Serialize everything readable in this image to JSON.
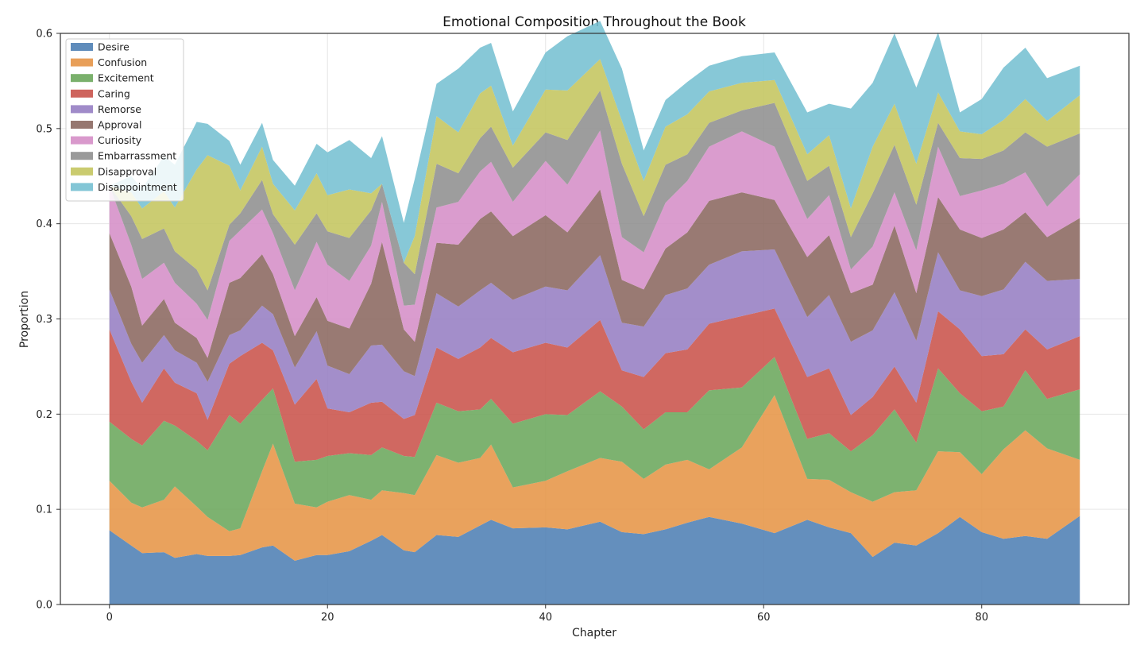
{
  "chart_data": {
    "type": "area",
    "stacked": true,
    "title": "Emotional Composition Throughout the Book",
    "xlabel": "Chapter",
    "ylabel": "Proportion",
    "xlim": [
      -4.5,
      93.5
    ],
    "ylim": [
      0,
      0.6
    ],
    "xticks": [
      0,
      20,
      40,
      60,
      80
    ],
    "yticks": [
      0.0,
      0.1,
      0.2,
      0.3,
      0.4,
      0.5,
      0.6
    ],
    "grid": true,
    "legend_position": "upper-left",
    "x_anchor": [
      0,
      2,
      3,
      5,
      6,
      8,
      9,
      11,
      12,
      14,
      15,
      17,
      19,
      20,
      22,
      24,
      25,
      27,
      28,
      30,
      32,
      34,
      35,
      37,
      40,
      42,
      45,
      47,
      49,
      51,
      53,
      55,
      58,
      61,
      64,
      66,
      68,
      70,
      72,
      74,
      76,
      78,
      80,
      82,
      84,
      86,
      89
    ],
    "series": [
      {
        "name": "Desire",
        "color": "#4e7fb4",
        "values": [
          0.078,
          0.062,
          0.054,
          0.055,
          0.049,
          0.053,
          0.051,
          0.051,
          0.052,
          0.06,
          0.062,
          0.046,
          0.052,
          0.052,
          0.056,
          0.067,
          0.073,
          0.057,
          0.055,
          0.073,
          0.071,
          0.083,
          0.089,
          0.08,
          0.081,
          0.079,
          0.087,
          0.076,
          0.074,
          0.079,
          0.086,
          0.092,
          0.085,
          0.075,
          0.089,
          0.081,
          0.075,
          0.05,
          0.065,
          0.062,
          0.075,
          0.092,
          0.076,
          0.069,
          0.072,
          0.069,
          0.093
        ]
      },
      {
        "name": "Confusion",
        "color": "#e69547",
        "values": [
          0.052,
          0.045,
          0.048,
          0.055,
          0.075,
          0.05,
          0.041,
          0.026,
          0.028,
          0.08,
          0.107,
          0.06,
          0.05,
          0.056,
          0.059,
          0.043,
          0.047,
          0.06,
          0.06,
          0.084,
          0.078,
          0.071,
          0.079,
          0.043,
          0.049,
          0.061,
          0.067,
          0.074,
          0.058,
          0.068,
          0.066,
          0.05,
          0.08,
          0.145,
          0.043,
          0.05,
          0.043,
          0.058,
          0.053,
          0.058,
          0.086,
          0.068,
          0.061,
          0.094,
          0.111,
          0.095,
          0.059
        ]
      },
      {
        "name": "Excitement",
        "color": "#6ba75c",
        "values": [
          0.062,
          0.067,
          0.065,
          0.083,
          0.064,
          0.069,
          0.07,
          0.122,
          0.11,
          0.075,
          0.058,
          0.044,
          0.05,
          0.048,
          0.044,
          0.047,
          0.045,
          0.039,
          0.04,
          0.055,
          0.054,
          0.051,
          0.048,
          0.067,
          0.07,
          0.059,
          0.07,
          0.058,
          0.052,
          0.055,
          0.05,
          0.083,
          0.063,
          0.04,
          0.042,
          0.049,
          0.043,
          0.07,
          0.087,
          0.05,
          0.087,
          0.062,
          0.066,
          0.045,
          0.063,
          0.052,
          0.074
        ]
      },
      {
        "name": "Caring",
        "color": "#c9534b",
        "values": [
          0.097,
          0.06,
          0.045,
          0.055,
          0.045,
          0.05,
          0.032,
          0.054,
          0.071,
          0.06,
          0.04,
          0.06,
          0.085,
          0.05,
          0.043,
          0.055,
          0.048,
          0.039,
          0.044,
          0.058,
          0.055,
          0.065,
          0.064,
          0.075,
          0.075,
          0.071,
          0.075,
          0.038,
          0.055,
          0.062,
          0.066,
          0.07,
          0.075,
          0.051,
          0.065,
          0.068,
          0.038,
          0.04,
          0.045,
          0.042,
          0.06,
          0.067,
          0.058,
          0.055,
          0.043,
          0.052,
          0.056
        ]
      },
      {
        "name": "Remorse",
        "color": "#967ec3",
        "values": [
          0.042,
          0.04,
          0.042,
          0.035,
          0.034,
          0.032,
          0.04,
          0.03,
          0.027,
          0.039,
          0.038,
          0.039,
          0.05,
          0.045,
          0.04,
          0.06,
          0.06,
          0.05,
          0.041,
          0.057,
          0.055,
          0.06,
          0.058,
          0.055,
          0.059,
          0.06,
          0.068,
          0.05,
          0.053,
          0.061,
          0.064,
          0.062,
          0.068,
          0.062,
          0.063,
          0.077,
          0.077,
          0.07,
          0.078,
          0.065,
          0.062,
          0.041,
          0.063,
          0.068,
          0.071,
          0.072,
          0.06
        ]
      },
      {
        "name": "Approval",
        "color": "#8b6860",
        "values": [
          0.059,
          0.06,
          0.039,
          0.038,
          0.029,
          0.026,
          0.025,
          0.055,
          0.055,
          0.054,
          0.042,
          0.033,
          0.036,
          0.047,
          0.048,
          0.065,
          0.108,
          0.044,
          0.036,
          0.053,
          0.065,
          0.075,
          0.075,
          0.067,
          0.075,
          0.061,
          0.069,
          0.045,
          0.039,
          0.049,
          0.059,
          0.067,
          0.062,
          0.052,
          0.063,
          0.063,
          0.051,
          0.048,
          0.07,
          0.05,
          0.058,
          0.064,
          0.061,
          0.063,
          0.052,
          0.046,
          0.064
        ]
      },
      {
        "name": "Curiosity",
        "color": "#d58ec7",
        "values": [
          0.05,
          0.044,
          0.049,
          0.038,
          0.042,
          0.036,
          0.04,
          0.044,
          0.05,
          0.047,
          0.043,
          0.048,
          0.058,
          0.059,
          0.05,
          0.04,
          0.042,
          0.025,
          0.039,
          0.037,
          0.045,
          0.05,
          0.052,
          0.036,
          0.057,
          0.05,
          0.062,
          0.045,
          0.039,
          0.048,
          0.054,
          0.057,
          0.064,
          0.056,
          0.04,
          0.042,
          0.025,
          0.04,
          0.035,
          0.045,
          0.053,
          0.035,
          0.05,
          0.048,
          0.042,
          0.032,
          0.046
        ]
      },
      {
        "name": "Embarrassment",
        "color": "#8f8f8f",
        "values": [
          0.0,
          0.03,
          0.042,
          0.036,
          0.033,
          0.036,
          0.031,
          0.017,
          0.018,
          0.031,
          0.02,
          0.048,
          0.03,
          0.035,
          0.045,
          0.037,
          0.019,
          0.045,
          0.032,
          0.046,
          0.03,
          0.035,
          0.037,
          0.036,
          0.03,
          0.047,
          0.042,
          0.077,
          0.038,
          0.04,
          0.028,
          0.025,
          0.022,
          0.046,
          0.04,
          0.031,
          0.034,
          0.056,
          0.05,
          0.048,
          0.025,
          0.04,
          0.033,
          0.035,
          0.042,
          0.063,
          0.043
        ]
      },
      {
        "name": "Disapproval",
        "color": "#c4c55f",
        "values": [
          0.0,
          0.025,
          0.032,
          0.039,
          0.046,
          0.105,
          0.142,
          0.062,
          0.024,
          0.035,
          0.032,
          0.036,
          0.042,
          0.038,
          0.051,
          0.018,
          0.0,
          0.0,
          0.04,
          0.05,
          0.043,
          0.047,
          0.043,
          0.023,
          0.045,
          0.052,
          0.033,
          0.045,
          0.037,
          0.04,
          0.042,
          0.033,
          0.029,
          0.024,
          0.028,
          0.032,
          0.03,
          0.049,
          0.043,
          0.043,
          0.032,
          0.028,
          0.026,
          0.032,
          0.035,
          0.027,
          0.04
        ]
      },
      {
        "name": "Disappointment",
        "color": "#76c0d2",
        "values": [
          0.0,
          0.017,
          0.021,
          0.037,
          0.045,
          0.05,
          0.033,
          0.026,
          0.027,
          0.025,
          0.025,
          0.026,
          0.031,
          0.045,
          0.052,
          0.037,
          0.05,
          0.042,
          0.06,
          0.034,
          0.067,
          0.048,
          0.045,
          0.036,
          0.039,
          0.057,
          0.04,
          0.055,
          0.032,
          0.028,
          0.034,
          0.027,
          0.028,
          0.029,
          0.044,
          0.033,
          0.105,
          0.067,
          0.074,
          0.08,
          0.063,
          0.02,
          0.037,
          0.055,
          0.054,
          0.045,
          0.031
        ]
      }
    ]
  }
}
